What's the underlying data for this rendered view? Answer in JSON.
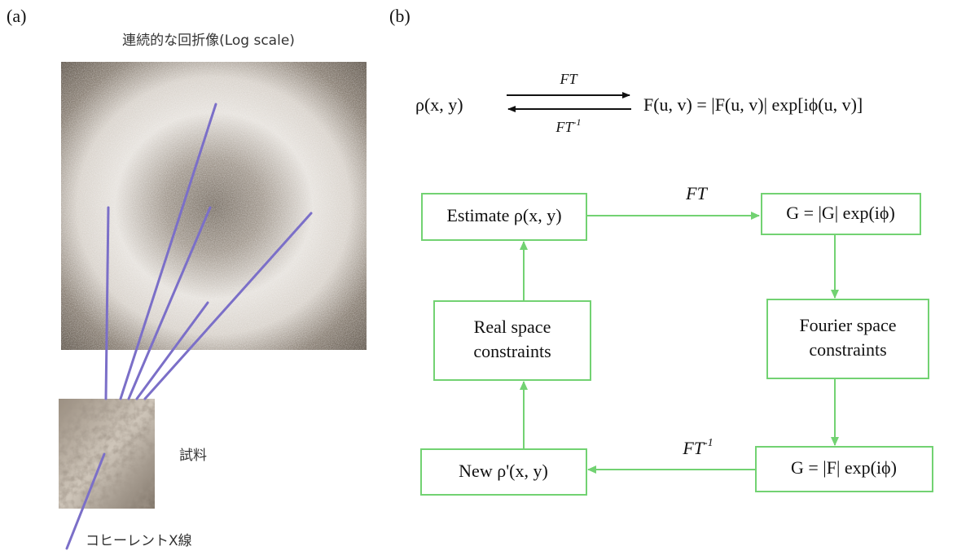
{
  "panel_a": {
    "label": "(a)",
    "title": "連続的な回折像(Log scale)",
    "sample_label": "試料",
    "beam_label": "コヒーレントX線"
  },
  "panel_b": {
    "label": "(b)",
    "equation": {
      "lhs": "ρ(x, y)",
      "forward": "FT",
      "inverse": {
        "base": "FT",
        "sup": "-1"
      },
      "rhs": "F(u, v) = |F(u, v)| exp[iϕ(u, v)]"
    },
    "nodes": {
      "estimate": [
        "Estimate ρ(x, y)"
      ],
      "g_fourier": [
        "G = |G| exp(iϕ)"
      ],
      "fourier_constraints": [
        "Fourier space",
        "constraints"
      ],
      "g_modulus": [
        "G = |F| exp(iϕ)"
      ],
      "new_estimate": [
        "New ρ'(x, y)"
      ],
      "real_constraints": [
        "Real space",
        "constraints"
      ]
    },
    "edge_labels": {
      "forward": "FT",
      "inverse": {
        "base": "FT",
        "sup": "-1"
      }
    }
  }
}
